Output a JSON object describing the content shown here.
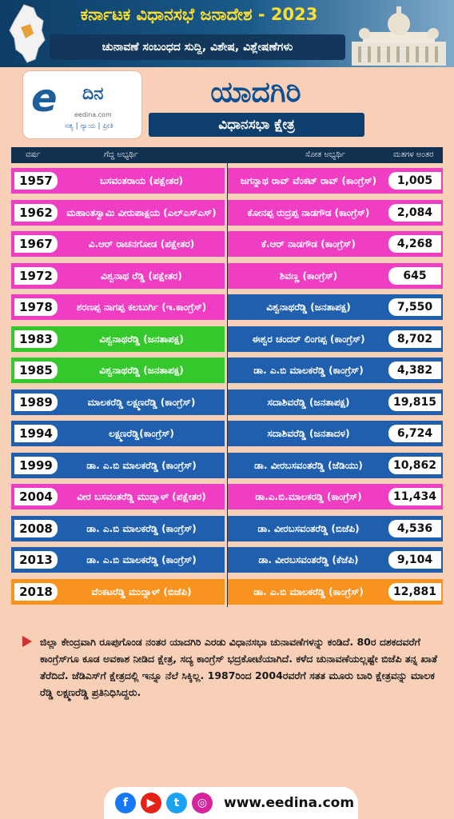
{
  "header": {
    "line1": "ಕರ್ನಾಟಕ ವಿಧಾನಸಭೆ ಜನಾದೇಶ - 2023",
    "line2": "ಚುನಾವಣೆ ಸಂಬಂಧದ ಸುದ್ದಿ, ವಿಶೇಷ, ವಿಶ್ಲೇಷಣೆಗಳು"
  },
  "logo": {
    "mark": "e",
    "word": "ದಿನ",
    "url": "eedina.com",
    "tagline": "ಸತ್ಯ | ನ್ಯಾಯ | ಪ್ರೀತಿ"
  },
  "title": "ಯಾದಗಿರಿ",
  "subtitle": "ವಿಧಾನಸಭಾ ಕ್ಷೇತ್ರ",
  "columns": {
    "year": "ವರ್ಷ",
    "winner": "ಗೆದ್ದ ಅಭ್ಯರ್ಥಿ",
    "loser": "ಸೋತ ಅಭ್ಯರ್ಥಿ",
    "margin": "ಮತಗಳ ಅಂತರ"
  },
  "rows": [
    {
      "year": "1957",
      "winner": "ಬಸವಂತರಾಯ (ಪಕ್ಷೇತರ)",
      "loser": "ಜಗನ್ನಾಥ ರಾವ್ ವೆಂಕಟ್ ರಾವ್ (ಕಾಂಗ್ರೆಸ್)",
      "margin": "1,005",
      "color_left": "#f03ec4",
      "color_right": "#f03ec4"
    },
    {
      "year": "1962",
      "winner": "ಮಹಾಂತಸ್ವಾಮಿ ವೀರುಪಾಕ್ಷಯ (ಎಲ್ಎಸ್ಎಸ್)",
      "loser": "ಕೋನಪ್ಪ ರುದ್ರಪ್ಪ ನಾಡಗೌಡ (ಕಾಂಗ್ರೆಸ್)",
      "margin": "2,084",
      "color_left": "#f03ec4",
      "color_right": "#f03ec4"
    },
    {
      "year": "1967",
      "winner": "ವಿ.ಆರ್ ರಾಚನಗೋಡ (ಪಕ್ಷೇತರ)",
      "loser": "ಕೆ.ಆರ್ ನಾಡಗೌಡ (ಕಾಂಗ್ರೆಸ್)",
      "margin": "4,268",
      "color_left": "#f03ec4",
      "color_right": "#f03ec4"
    },
    {
      "year": "1972",
      "winner": "ವಿಶ್ವನಾಥ ರೆಡ್ಡಿ (ಪಕ್ಷೇತರ)",
      "loser": "ಶಿವಣ್ಣ (ಕಾಂಗ್ರೆಸ್)",
      "margin": "645",
      "color_left": "#f03ec4",
      "color_right": "#f03ec4"
    },
    {
      "year": "1978",
      "winner": "ಶರಣಪ್ಪ ನಾಗಪ್ಪ ಕಲಬುರ್ಗಿ (ಇ.ಕಾಂಗ್ರೆಸ್)",
      "loser": "ವಿಶ್ವನಾಥರೆಡ್ಡಿ (ಜನತಾಪಕ್ಷ)",
      "margin": "7,550",
      "color_left": "#f03ec4",
      "color_right": "#1f5fae"
    },
    {
      "year": "1983",
      "winner": "ವಿಶ್ವನಾಥರೆಡ್ಡಿ (ಜನತಾಪಕ್ಷ)",
      "loser": "ಈಶ್ವರ ಚಂದರ್ ಲಿಂಗಪ್ಪ (ಕಾಂಗ್ರೆಸ್)",
      "margin": "8,702",
      "color_left": "#35c82d",
      "color_right": "#1f5fae"
    },
    {
      "year": "1985",
      "winner": "ವಿಶ್ವನಾಥರೆಡ್ಡಿ (ಜನತಾಪಕ್ಷ)",
      "loser": "ಡಾ. ಎ.ಬಿ ಮಾಲಕರೆಡ್ಡಿ (ಕಾಂಗ್ರೆಸ್)",
      "margin": "4,382",
      "color_left": "#35c82d",
      "color_right": "#1f5fae"
    },
    {
      "year": "1989",
      "winner": "ಮಾಲಕರೆಡ್ಡಿ ಲಕ್ಷ್ಮಣರೆಡ್ಡಿ (ಕಾಂಗ್ರೆಸ್)",
      "loser": "ಸದಾಶಿವರೆಡ್ಡಿ (ಜನತಾಪಕ್ಷ)",
      "margin": "19,815",
      "color_left": "#1f5fae",
      "color_right": "#1f5fae"
    },
    {
      "year": "1994",
      "winner": "ಲಕ್ಷ್ಮಣರೆಡ್ಡಿ(ಕಾಂಗ್ರೆಸ್)",
      "loser": "ಸದಾಶಿವರೆಡ್ಡಿ (ಜನತಾದಳ)",
      "margin": "6,724",
      "color_left": "#1f5fae",
      "color_right": "#1f5fae"
    },
    {
      "year": "1999",
      "winner": "ಡಾ. ಎ.ಬಿ ಮಾಲಕರೆಡ್ಡಿ (ಕಾಂಗ್ರೆಸ್)",
      "loser": "ಡಾ. ವೀರಬಸವಂತರೆಡ್ಡಿ (ಜೆಡಿಯು)",
      "margin": "10,862",
      "color_left": "#1f5fae",
      "color_right": "#1f5fae"
    },
    {
      "year": "2004",
      "winner": "ವೀರ ಬಸವಂತರೆಡ್ಡಿ ಮುದ್ನಾಳ್ (ಪಕ್ಷೇತರ)",
      "loser": "ಡಾ.ಎ.ಬಿ.ಮಾಲಕರಡ್ಡಿ (ಕಾಂಗ್ರೆಸ್)",
      "margin": "11,434",
      "color_left": "#f03ec4",
      "color_right": "#f03ec4"
    },
    {
      "year": "2008",
      "winner": "ಡಾ. ಎ.ಬಿ ಮಾಲಕರೆಡ್ಡಿ (ಕಾಂಗ್ರೆಸ್)",
      "loser": "ಡಾ. ವೀರಬಸವಂತರೆಡ್ಡಿ (ಬಿಜೆಪಿ)",
      "margin": "4,536",
      "color_left": "#1f5fae",
      "color_right": "#1f5fae"
    },
    {
      "year": "2013",
      "winner": "ಡಾ. ಎ.ಬಿ ಮಾಲಕರೆಡ್ಡಿ (ಕಾಂಗ್ರೆಸ್)",
      "loser": "ಡಾ. ವೀರಬಸವಂತರೆಡ್ಡಿ (ಕೆಜೆಪಿ)",
      "margin": "9,104",
      "color_left": "#1f5fae",
      "color_right": "#1f5fae"
    },
    {
      "year": "2018",
      "winner": "ವೆಂಕಟರೆಡ್ಡಿ ಮುದ್ನಾಳ್ (ಬಿಜೆಪಿ)",
      "loser": "ಡಾ. ಎ.ಬಿ ಮಾಲಕರೆಡ್ಡಿ (ಕಾಂಗ್ರೆಸ್)",
      "margin": "12,881",
      "color_left": "#f7931e",
      "color_right": "#f7931e"
    }
  ],
  "note": "ಜಿಲ್ಲಾ ಕೇಂದ್ರವಾಗಿ ರೂಪುಗೊಂಡ ನಂತರ ಯಾದಗಿರಿ ಎರಡು ವಿಧಾನಸಭಾ ಚುನಾವಣೆಗಳನ್ನು ಕಂಡಿದೆ. 80ರ ದಶಕದವರೆಗೆ ಕಾಂಗ್ರೆಸ್‌ಗೂ ಕೂಡ ಅವಕಾಶ ನೀಡಿದ ಕ್ಷೇತ್ರ, ಸದ್ಯ ಕಾಂಗ್ರೆಸ್ ಭದ್ರಕೋಟೆಯಾಗಿದೆ. ಕಳೆದ ಚುನಾವಣೆಯಲ್ಲಷ್ಟೇ ಬಿಜೆಪಿ ತನ್ನ ಖಾತೆ ತೆರೆದಿದೆ. ಜೆಡಿಎಸ್‌ಗೆ ಕ್ಷೇತ್ರದಲ್ಲಿ ಇನ್ನೂ ನೆಲೆ ಸಿಕ್ಕಿಲ್ಲ. 1987ರಿಂದ 2004ರವರೆಗೆ ಸತತ ಮೂರು ಬಾರಿ ಕ್ಷೇತ್ರವನ್ನು ಮಾಲಕ ರೆಡ್ಡಿ ಲಕ್ಷ್ಮಣರೆಡ್ಡಿ ಪ್ರತಿನಿಧಿಸಿದ್ದರು.",
  "footer": {
    "website": "www.eedina.com",
    "social": [
      {
        "icon": "facebook-icon",
        "glyph": "f",
        "color": "#1877f2"
      },
      {
        "icon": "youtube-icon",
        "glyph": "▶",
        "color": "#e62117"
      },
      {
        "icon": "twitter-icon",
        "glyph": "t",
        "color": "#1da1f2"
      },
      {
        "icon": "instagram-icon",
        "glyph": "◎",
        "color": "#d6249f"
      }
    ]
  }
}
